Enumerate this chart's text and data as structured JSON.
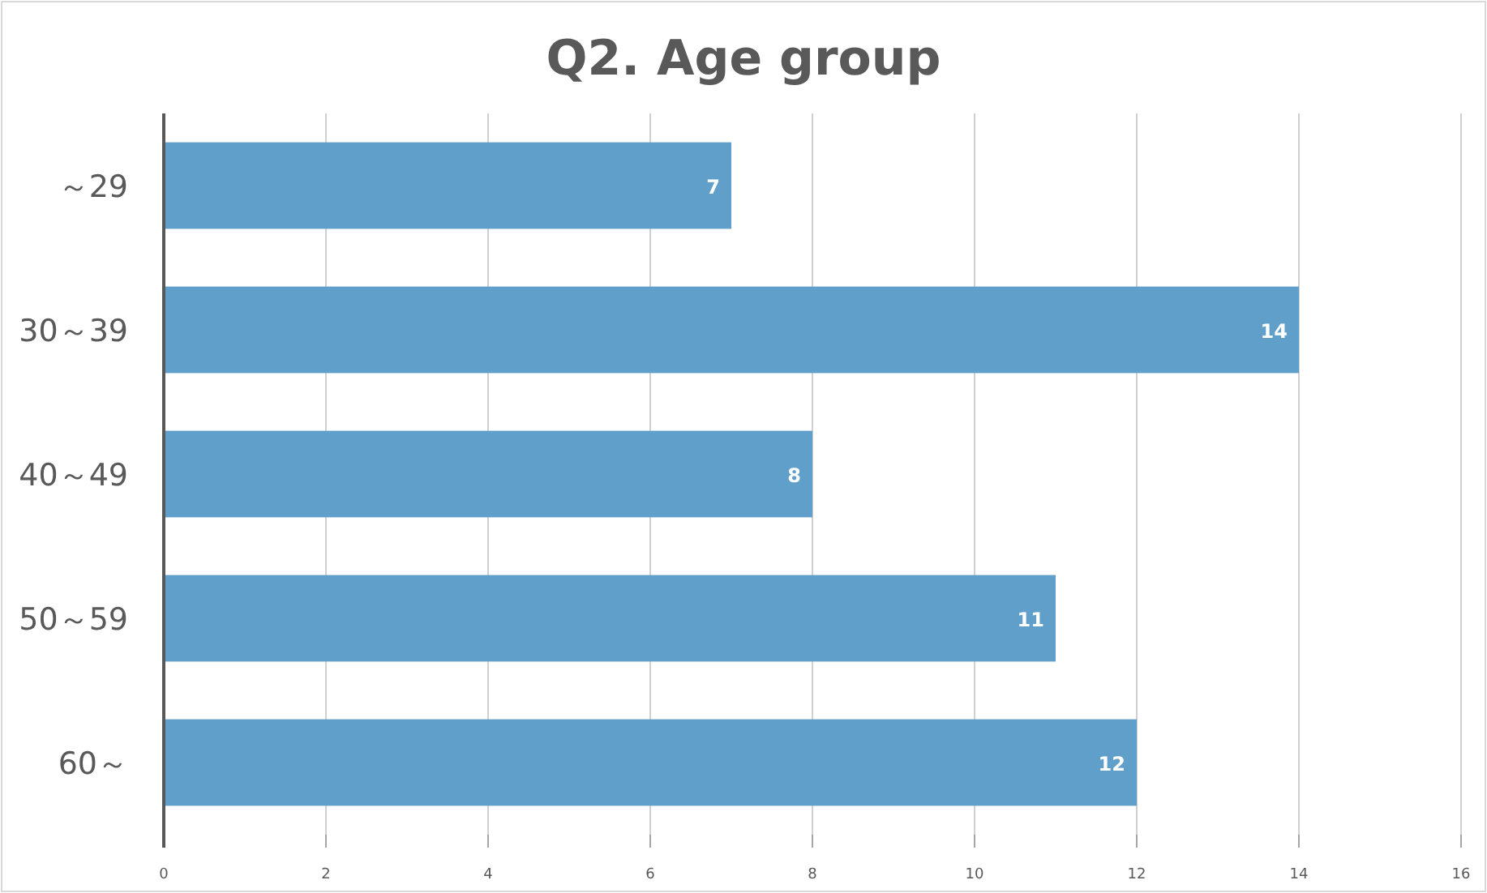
{
  "chart_data": {
    "type": "bar",
    "orientation": "horizontal",
    "title": "Q2. Age group",
    "categories": [
      "～29",
      "30～39",
      "40～49",
      "50～59",
      "60～"
    ],
    "values": [
      7,
      14,
      8,
      11,
      12
    ],
    "color": "#619fcb",
    "data_labels": true,
    "xlim": [
      0,
      16
    ],
    "xticks": [
      0,
      2,
      4,
      6,
      8,
      10,
      12,
      14,
      16
    ],
    "grid": "x"
  }
}
